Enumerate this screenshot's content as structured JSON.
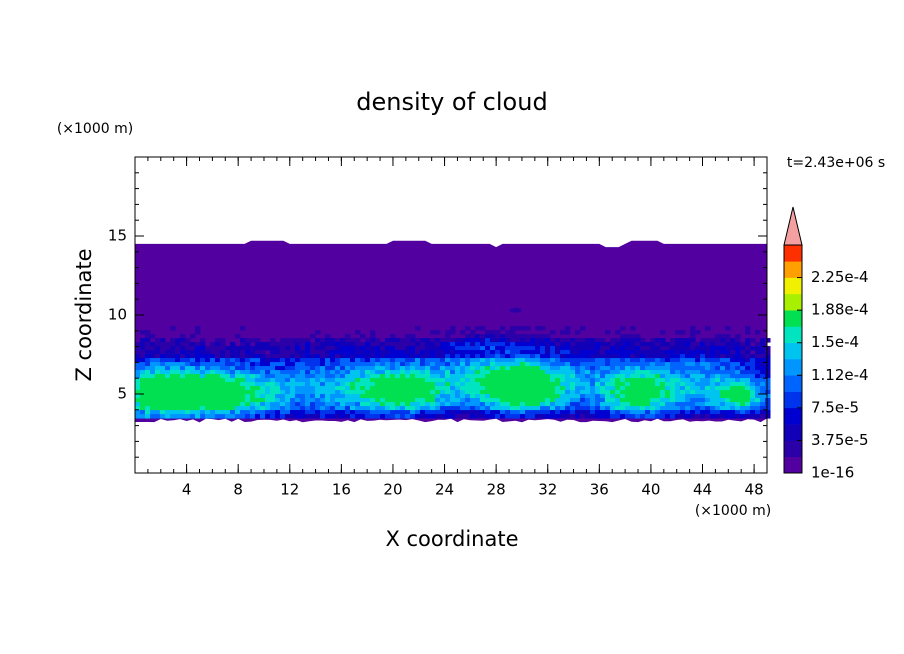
{
  "chart_data": {
    "type": "contour",
    "title": "density of cloud",
    "xlabel": "X coordinate",
    "ylabel": "Z coordinate",
    "x_unit_label": "(×1000 m)",
    "y_unit_label": "(×1000 m)",
    "annotation": "t=2.43e+06 s",
    "xlim": [
      0,
      49
    ],
    "ylim": [
      0,
      20
    ],
    "xticks": [
      4,
      8,
      12,
      16,
      20,
      24,
      28,
      32,
      36,
      40,
      44,
      48
    ],
    "yticks": [
      5,
      10,
      15
    ],
    "colorbar": {
      "clim": [
        1e-16,
        0.0002625
      ],
      "ticks": [
        1e-16,
        {
          "value": 3.75e-05,
          "label": "3.75e-5"
        },
        {
          "value": 7.5e-05,
          "label": "7.5e-5"
        },
        {
          "value": 0.0001125,
          "label": "1.12e-4"
        },
        {
          "value": 0.00015,
          "label": "1.5e-4"
        },
        {
          "value": 0.0001875,
          "label": "1.88e-4"
        },
        {
          "value": 0.000225,
          "label": "2.25e-4"
        }
      ],
      "colors": [
        "#5200a0",
        "#2c00a8",
        "#1200b8",
        "#0000d0",
        "#0034ec",
        "#0064ff",
        "#0096ff",
        "#00c4f0",
        "#00e4c0",
        "#00e050",
        "#a8f000",
        "#f0f000",
        "#ffa000",
        "#ff3000"
      ],
      "extend_color": "#f4a0a0"
    }
  }
}
